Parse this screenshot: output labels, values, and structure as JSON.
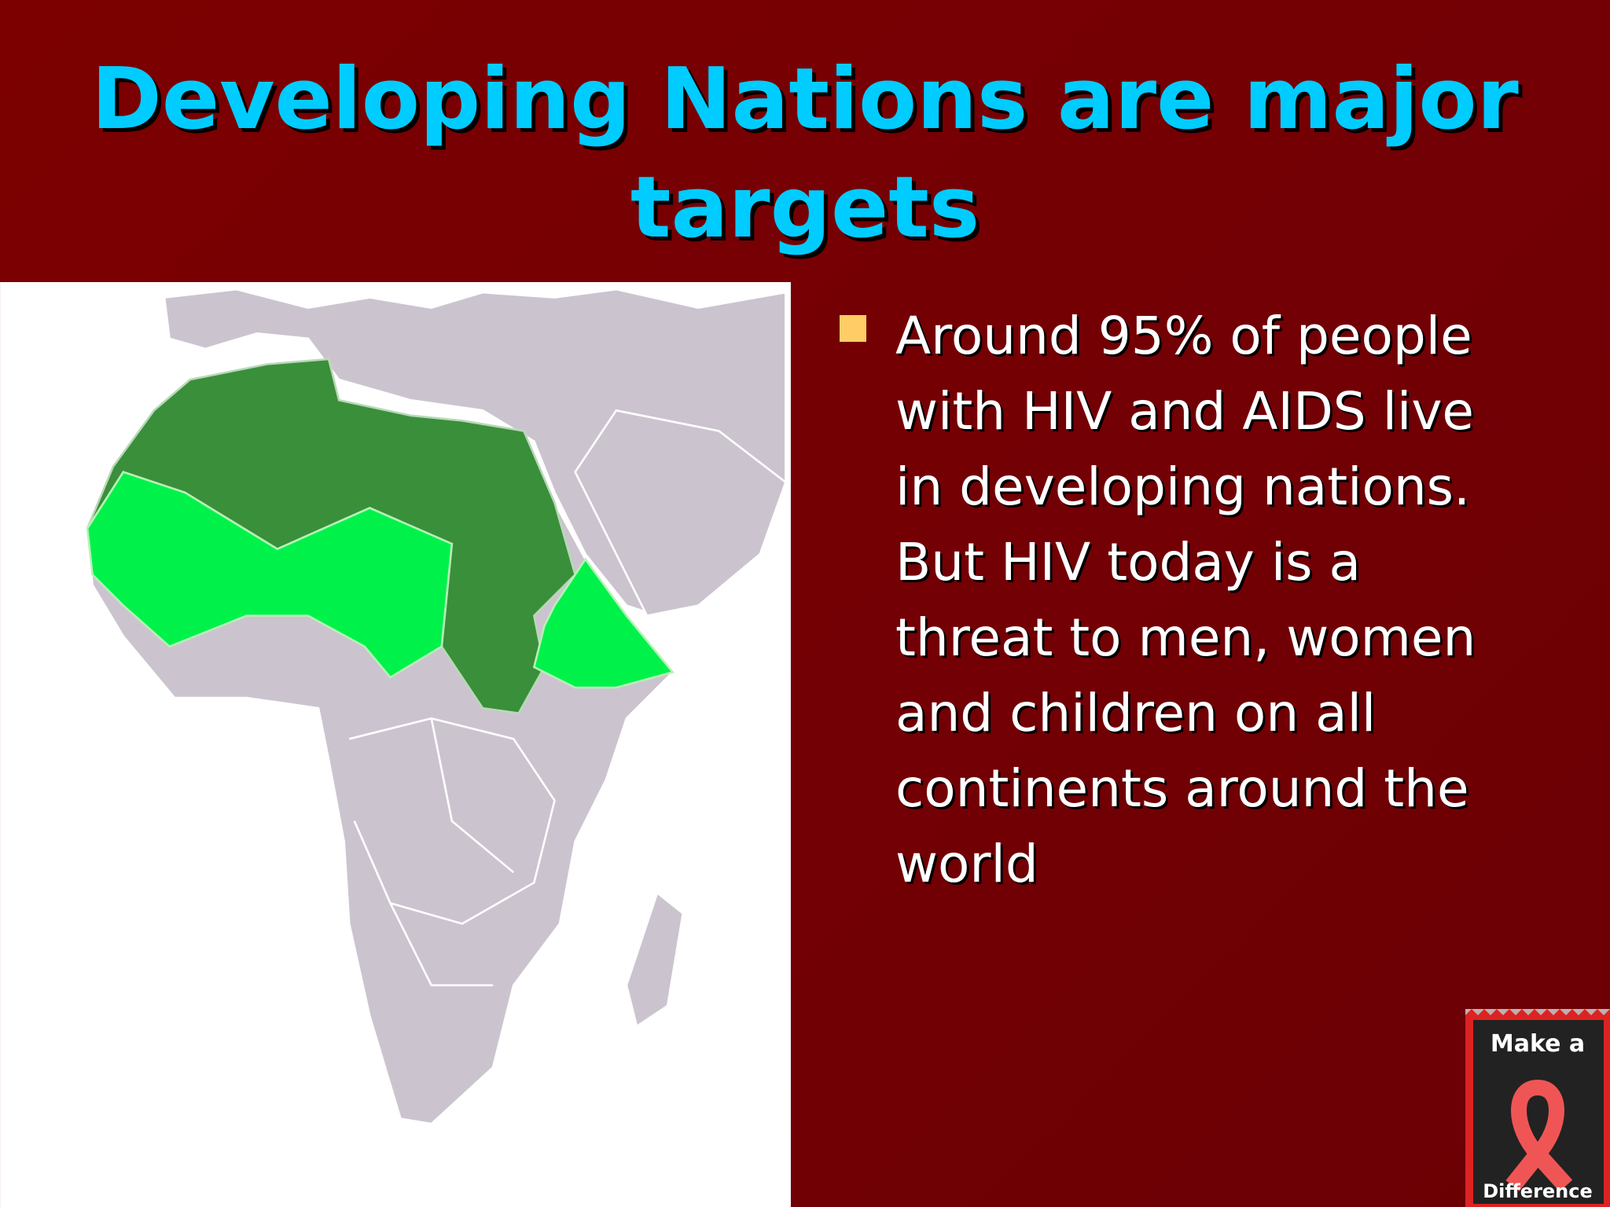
{
  "title": "Developing Nations are major targets",
  "bullets": [
    "Around 95% of people with HIV and AIDS live in developing nations. But HIV today is a threat to men, women and children on all continents around the world"
  ],
  "badge": {
    "line1": "Make a",
    "line2": "Difference"
  }
}
